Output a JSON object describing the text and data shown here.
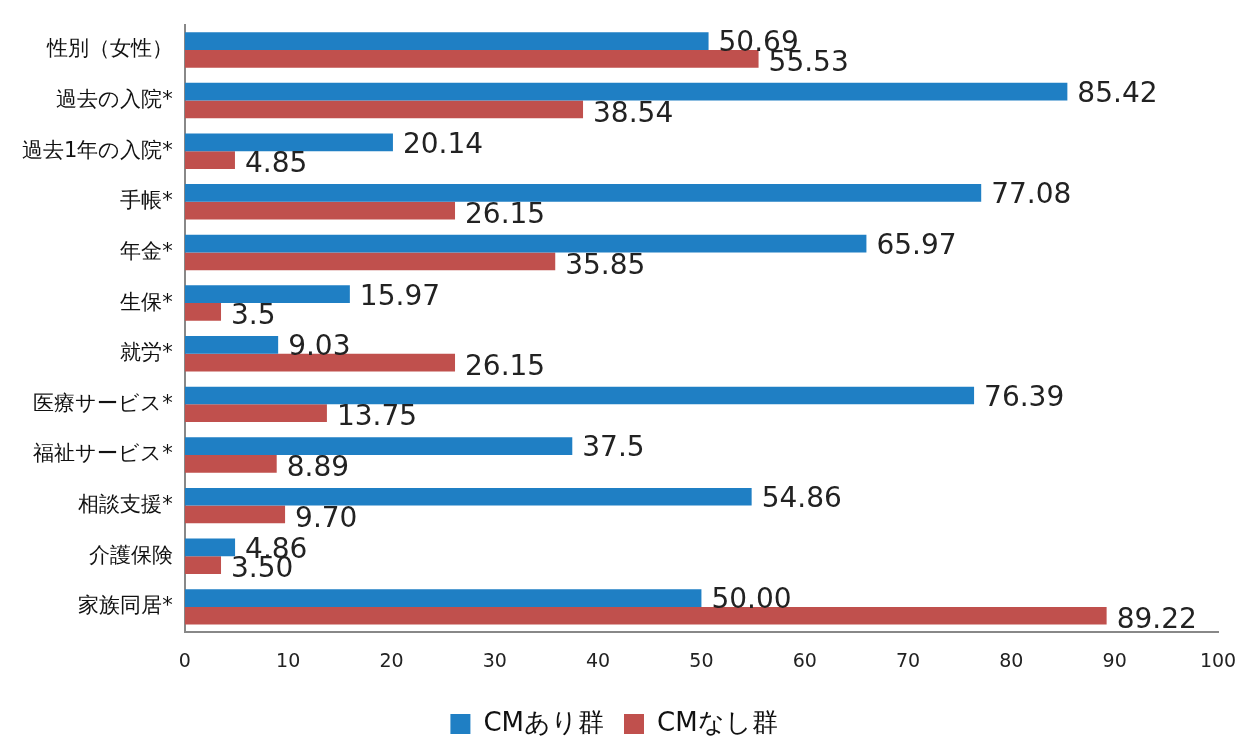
{
  "chart_data": {
    "type": "bar",
    "orientation": "horizontal",
    "categories": [
      "性別（女性）",
      "過去の入院*",
      "過去1年の入院*",
      "手帳*",
      "年金*",
      "生保*",
      "就労*",
      "医療サービス*",
      "福祉サービス*",
      "相談支援*",
      "介護保険",
      "家族同居*"
    ],
    "series": [
      {
        "name": "CMあり群",
        "color": "#1f7fc4",
        "values": [
          50.69,
          85.42,
          20.14,
          77.08,
          65.97,
          15.97,
          9.03,
          76.39,
          37.5,
          54.86,
          4.86,
          50.0
        ],
        "value_labels": [
          "50.69",
          "85.42",
          "20.14",
          "77.08",
          "65.97",
          "15.97",
          "9.03",
          "76.39",
          "37.5",
          "54.86",
          "4.86",
          "50.00"
        ]
      },
      {
        "name": "CMなし群",
        "color": "#c0504d",
        "values": [
          55.53,
          38.54,
          4.85,
          26.15,
          35.85,
          3.5,
          26.15,
          13.75,
          8.89,
          9.7,
          3.5,
          89.22
        ],
        "value_labels": [
          "55.53",
          "38.54",
          "4.85",
          "26.15",
          "35.85",
          "3.5",
          "26.15",
          "13.75",
          "8.89",
          "9.70",
          "3.50",
          "89.22"
        ]
      }
    ],
    "xlim": [
      0,
      100
    ],
    "xticks": [
      0,
      10,
      20,
      30,
      40,
      50,
      60,
      70,
      80,
      90,
      100
    ],
    "grid": false,
    "legend": "bottom"
  }
}
